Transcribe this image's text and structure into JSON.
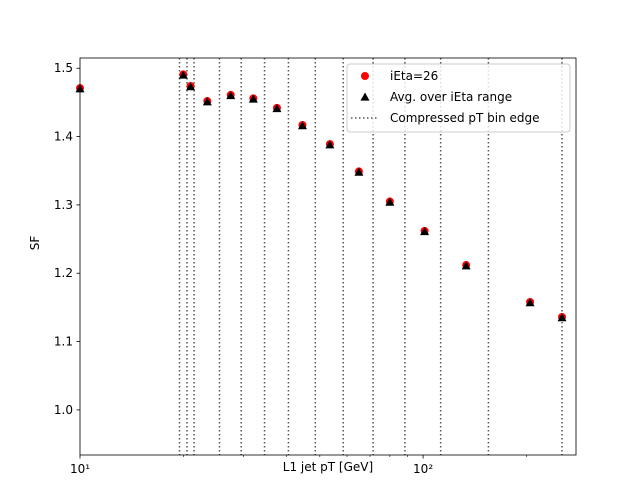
{
  "chart_data": {
    "type": "scatter",
    "xlabel": "L1 jet pT [GeV]",
    "ylabel": "SF",
    "xscale": "log",
    "xlim": [
      10,
      279
    ],
    "ylim": [
      0.934,
      1.515
    ],
    "xticks": [
      {
        "value": 10,
        "label": "10¹"
      },
      {
        "value": 100,
        "label": "10²"
      }
    ],
    "xminorticks": [
      20,
      30,
      40,
      50,
      60,
      70,
      80,
      90,
      200
    ],
    "yticks": [
      {
        "value": 1.0,
        "label": "1.0"
      },
      {
        "value": 1.1,
        "label": "1.1"
      },
      {
        "value": 1.2,
        "label": "1.2"
      },
      {
        "value": 1.3,
        "label": "1.3"
      },
      {
        "value": 1.4,
        "label": "1.4"
      },
      {
        "value": 1.5,
        "label": "1.5"
      }
    ],
    "legend": "upper right",
    "series": [
      {
        "name": "iEta=26",
        "color": "#ff0000",
        "marker": "circle",
        "x": [
          10,
          20,
          21,
          23.5,
          27.5,
          32,
          37.5,
          44.5,
          53.5,
          65,
          80,
          101,
          133.5,
          205,
          254
        ],
        "values": [
          1.471,
          1.491,
          1.474,
          1.452,
          1.461,
          1.456,
          1.442,
          1.417,
          1.389,
          1.349,
          1.305,
          1.262,
          1.212,
          1.158,
          1.136
        ]
      },
      {
        "name": "Avg. over iEta range",
        "color": "#000000",
        "marker": "triangle",
        "x": [
          10,
          20,
          21,
          23.5,
          27.5,
          32,
          37.5,
          44.5,
          53.5,
          65,
          80,
          101,
          133.5,
          205,
          254
        ],
        "values": [
          1.47,
          1.49,
          1.473,
          1.451,
          1.46,
          1.455,
          1.441,
          1.416,
          1.388,
          1.348,
          1.304,
          1.261,
          1.211,
          1.157,
          1.135
        ]
      }
    ],
    "vlines": {
      "name": "Compressed pT bin edge",
      "color": "#555555",
      "x": [
        19.5,
        20.5,
        21.5,
        25.5,
        29.5,
        34.5,
        40.5,
        48.5,
        58.5,
        71.5,
        88.5,
        112.5,
        155,
        254
      ]
    }
  }
}
